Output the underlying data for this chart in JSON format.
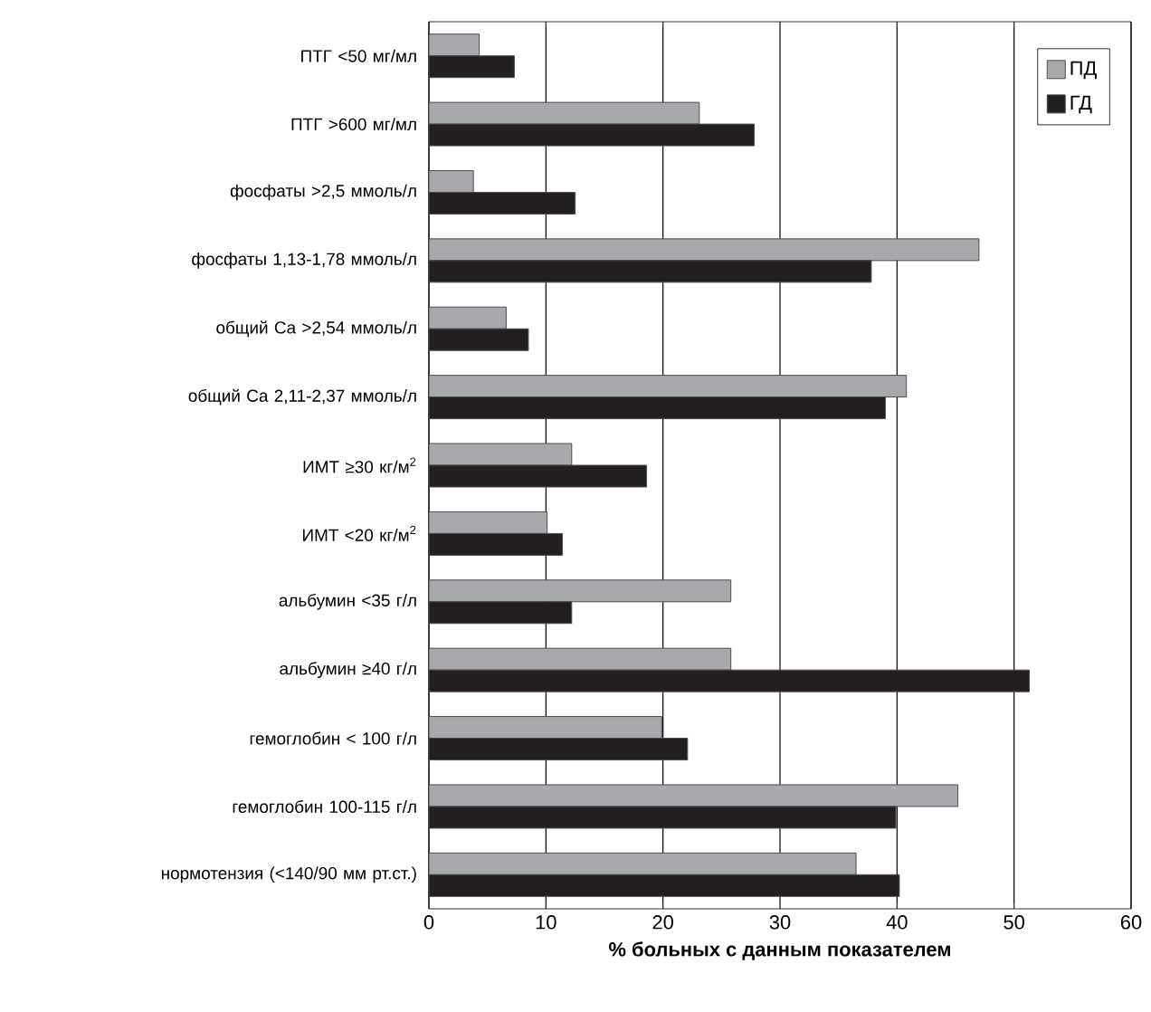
{
  "chart_data": {
    "type": "bar",
    "orientation": "horizontal",
    "xlabel": "**% больных с данным показателем**",
    "categories": [
      "ПТГ <50 мг/мл",
      "ПТГ >600 мг/мл",
      "фосфаты >2,5 ммоль/л",
      "фосфаты 1,13-1,78 ммоль/л",
      "общий Ca >2,54 ммоль/л",
      "общий Ca 2,11-2,37 ммоль/л",
      "ИМТ ≥30 кг/м$^{2}$",
      "ИМТ <20 кг/м$^{2}$",
      "альбумин <35 г/л",
      "альбумин ≥40 г/л",
      "гемоглобин < 100 г/л",
      "гемоглобин 100-115 г/л",
      "нормотензия (<140/90 мм рт.ст.)"
    ],
    "series": [
      {
        "name": "ПД",
        "color": "#a7a9ac",
        "values": [
          4.3,
          23.1,
          3.8,
          47.0,
          6.6,
          40.8,
          12.2,
          10.1,
          25.8,
          25.8,
          19.9,
          45.2,
          36.5
        ]
      },
      {
        "name": "ГД",
        "color": "#231f20",
        "values": [
          7.3,
          27.8,
          12.5,
          37.8,
          8.5,
          39.0,
          18.6,
          11.4,
          12.2,
          51.3,
          22.1,
          39.9,
          40.2
        ]
      }
    ],
    "xlim": [
      0,
      60
    ],
    "xticks": [
      0,
      10,
      20,
      30,
      40,
      50,
      60
    ],
    "grid": "x",
    "legend": "top right"
  }
}
